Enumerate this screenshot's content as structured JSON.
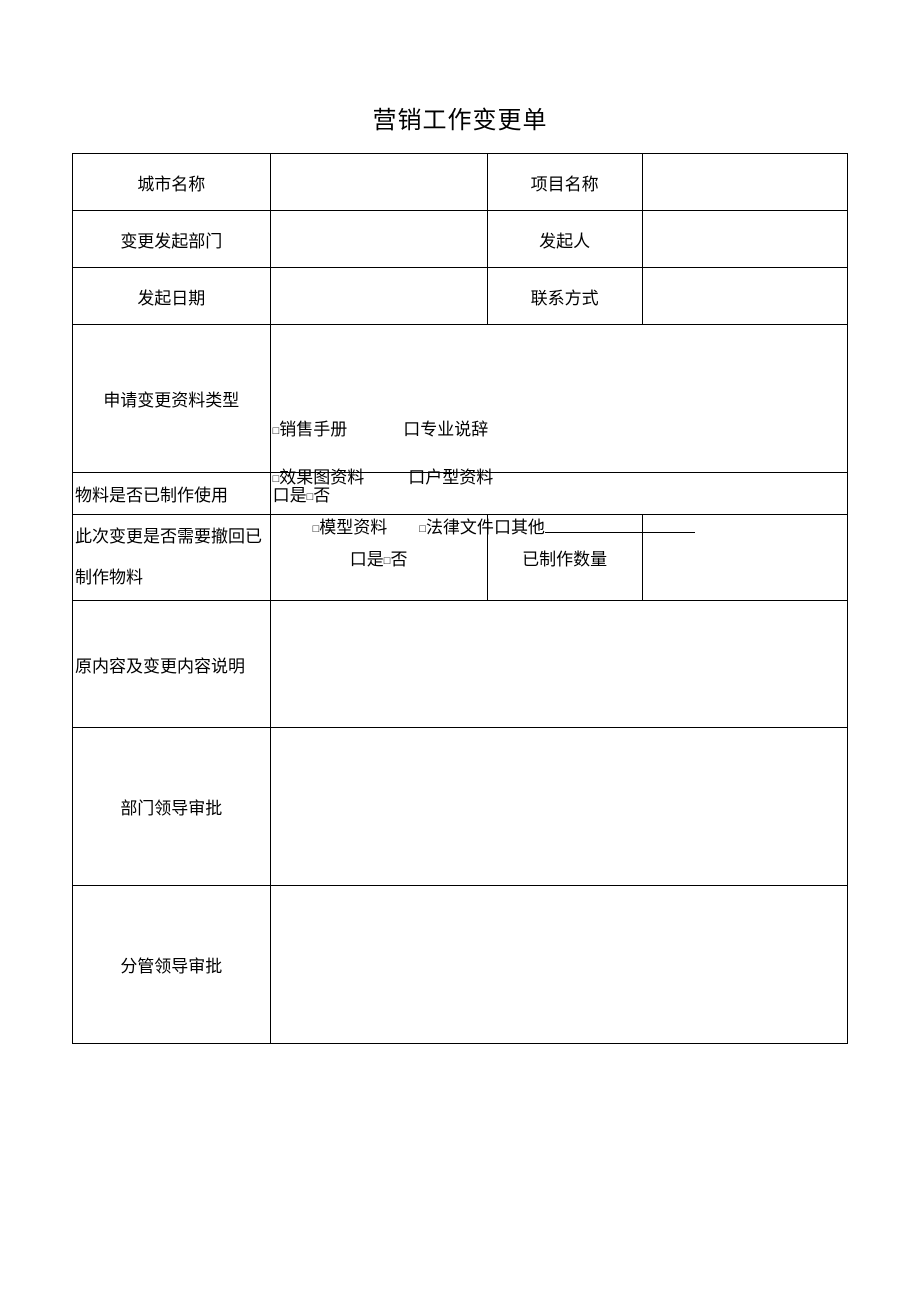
{
  "title": "营销工作变更单",
  "labels": {
    "city_name": "城市名称",
    "project_name": "项目名称",
    "change_dept": "变更发起部门",
    "initiator": "发起人",
    "init_date": "发起日期",
    "contact": "联系方式",
    "mat_type": "申请变更资料类型",
    "mat_made": "物料是否已制作使用",
    "recall": "此次变更是否需要撤回已制作物料",
    "made_qty": "已制作数量",
    "explain": "原内容及变更内容说明",
    "dept_appr": "部门领导审批",
    "supv_appr": "分管领导审批"
  },
  "options": {
    "sales_manual": "销售手册",
    "pro_speech": "专业说辞",
    "render_mat": "效果图资料",
    "unit_mat": "户型资料",
    "model_mat": "模型资料",
    "legal_doc": "法律文件",
    "other": "其他",
    "yes": "是",
    "no": "否"
  },
  "glyph": {
    "small_box": "□",
    "big_box": "口"
  },
  "values": {
    "city_name": "",
    "project_name": "",
    "change_dept": "",
    "initiator": "",
    "init_date": "",
    "contact": "",
    "made_qty": "",
    "explain": "",
    "dept_appr": "",
    "supv_appr": ""
  },
  "style": {
    "page_bg": "#ffffff",
    "border_color": "#000000",
    "title_fontsize": 24,
    "cell_fontsize": 17,
    "font_family": "SimSun"
  }
}
